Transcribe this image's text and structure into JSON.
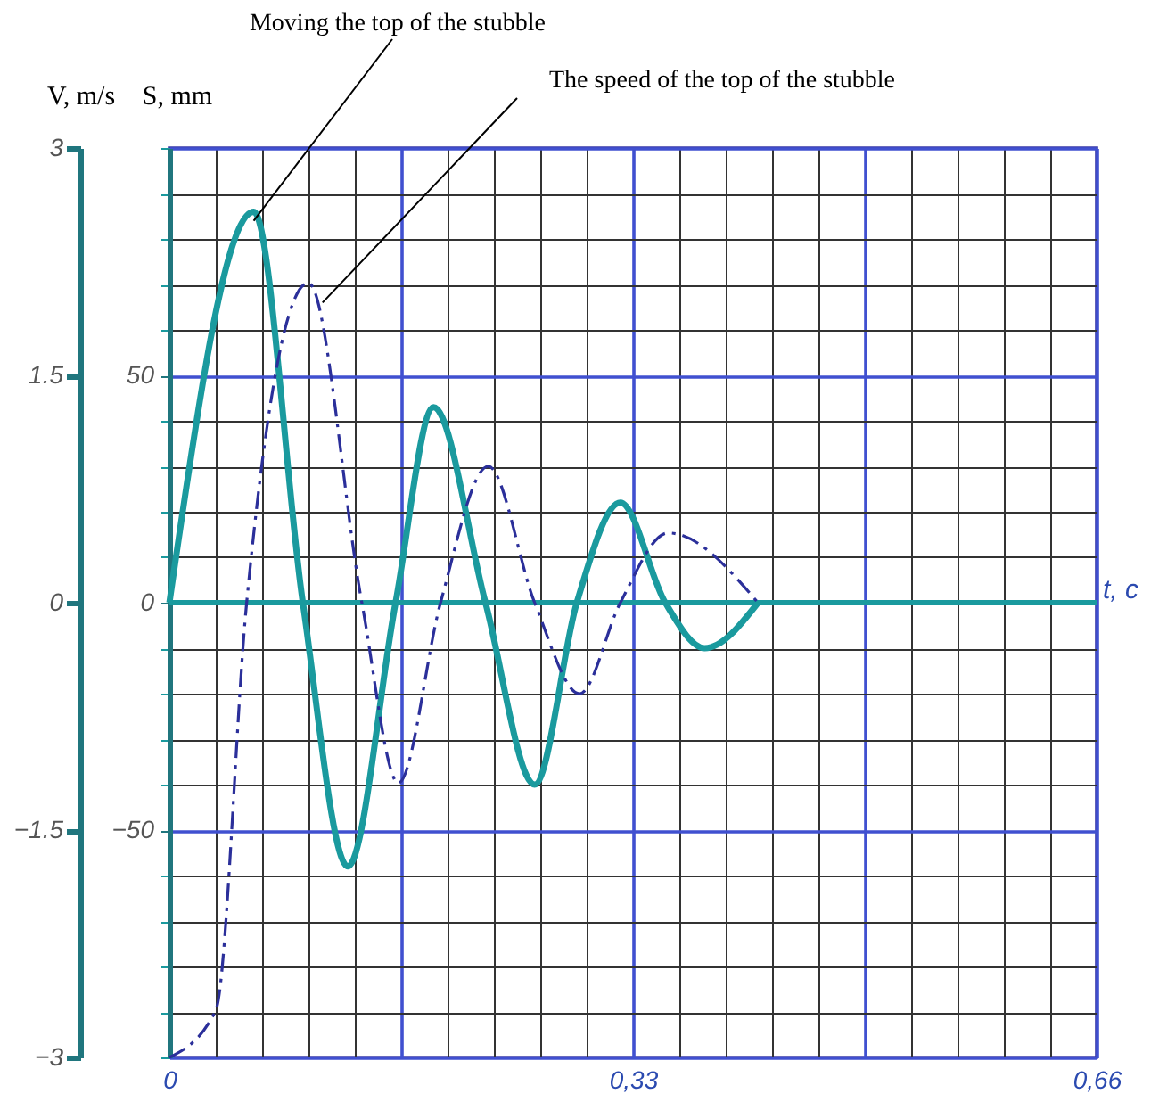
{
  "chart_data": {
    "type": "line",
    "xlabel": "t, c",
    "ylabel": "V, m/s",
    "y2label": "S, mm",
    "xlim": [
      0,
      0.66
    ],
    "xticks": [
      0,
      {
        "value": 0.33,
        "label": "0,33"
      },
      {
        "value": 0.66,
        "label": "0,66"
      }
    ],
    "ylim": [
      -3,
      3
    ],
    "yticks": [
      -3,
      -1.5,
      0,
      1.5,
      3
    ],
    "y2lim": [
      -100,
      100
    ],
    "y2ticks": [
      -50,
      0,
      50
    ],
    "grid": true,
    "ref_lines": [
      {
        "axis": "y",
        "value": 0,
        "color": "#1a9a9e"
      }
    ],
    "series": [
      {
        "color": "#1a9a9e",
        "line_style": "solid",
        "axis": "y2",
        "x": [
          0,
          0.06,
          0.095,
          0.127,
          0.161,
          0.188,
          0.225,
          0.26,
          0.29,
          0.321,
          0.353,
          0.381,
          0.419
        ],
        "values": [
          0,
          86,
          0,
          -58,
          0,
          43,
          0,
          -40,
          0,
          22,
          0,
          -10,
          0
        ]
      },
      {
        "color": "#2b2f9a",
        "line_style": "dashed",
        "x": [
          0,
          0.033,
          0.055,
          0.099,
          0.137,
          0.163,
          0.193,
          0.227,
          0.26,
          0.292,
          0.321,
          0.355,
          0.419
        ],
        "values": [
          -3,
          -2.69,
          0,
          2.11,
          0,
          -1.19,
          0,
          0.9,
          0,
          -0.6,
          0,
          0.46,
          0
        ]
      }
    ],
    "annotations": [
      {
        "text": "Moving the top of the stubble",
        "x": 0.06,
        "y": 2.52
      },
      {
        "text": "The speed of the top of the stubble",
        "x": 0.109,
        "y": 1.98
      }
    ]
  }
}
